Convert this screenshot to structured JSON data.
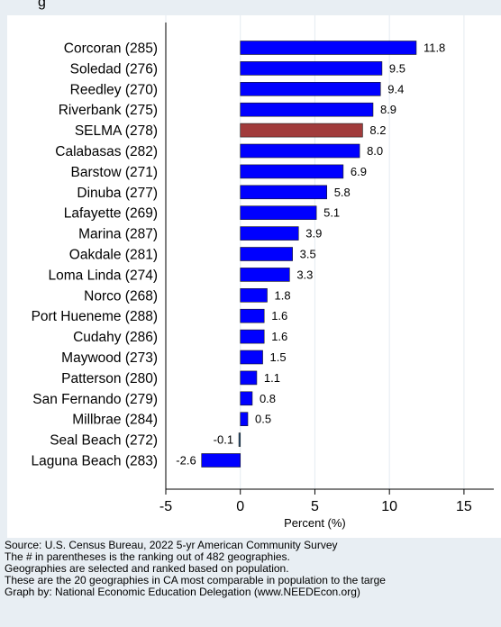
{
  "header": {
    "title_fragment": "g"
  },
  "chart_data": {
    "type": "bar",
    "orientation": "horizontal",
    "title": "",
    "xlabel": "Percent (%)",
    "ylabel": "",
    "xlim": [
      -5,
      17
    ],
    "xticks": [
      -5,
      0,
      5,
      10,
      15
    ],
    "grid": "vertical",
    "categories": [
      "Corcoran (285)",
      "Soledad (276)",
      "Reedley (270)",
      "Riverbank (275)",
      "SELMA (278)",
      "Calabasas (282)",
      "Barstow (271)",
      "Dinuba (277)",
      "Lafayette (269)",
      "Marina (287)",
      "Oakdale (281)",
      "Loma Linda (274)",
      "Norco (268)",
      "Port Hueneme (288)",
      "Cudahy (286)",
      "Maywood (273)",
      "Patterson (280)",
      "San Fernando (279)",
      "Millbrae (284)",
      "Seal Beach (272)",
      "Laguna Beach (283)"
    ],
    "values": [
      11.8,
      9.5,
      9.4,
      8.9,
      8.2,
      8.0,
      6.9,
      5.8,
      5.1,
      3.9,
      3.5,
      3.3,
      1.8,
      1.6,
      1.6,
      1.5,
      1.1,
      0.8,
      0.5,
      -0.1,
      -2.6
    ],
    "value_labels": [
      "11.8",
      "9.5",
      "9.4",
      "8.9",
      "8.2",
      "8.0",
      "6.9",
      "5.8",
      "5.1",
      "3.9",
      "3.5",
      "3.3",
      "1.8",
      "1.6",
      "1.6",
      "1.5",
      "1.1",
      "0.8",
      "0.5",
      "-0.1",
      "-2.6"
    ],
    "highlight_category": "SELMA (278)",
    "colors": {
      "bar": "#0000ff",
      "highlight": "#a13b3b",
      "negative_small": "#2f5f8a",
      "grid": "#e8eef3"
    }
  },
  "footnotes": [
    "Source: U.S. Census Bureau, 2022 5-yr American Community Survey",
    "The # in parentheses is the ranking out of 482 geographies.",
    "Geographies are selected and ranked based on population.",
    "These are the 20 geographies in CA most comparable in population to the targe",
    "Graph by: National Economic Education Delegation (www.NEEDEcon.org)"
  ]
}
